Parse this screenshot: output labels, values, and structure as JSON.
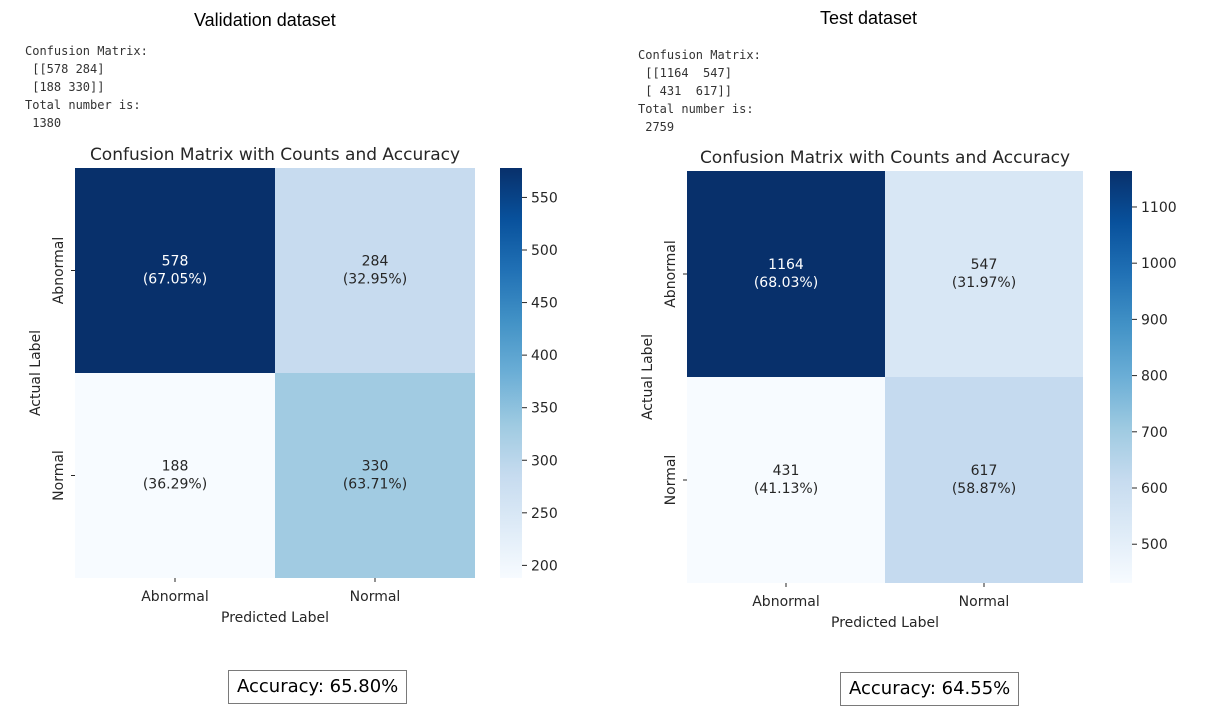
{
  "panels": [
    {
      "heading": "Validation dataset",
      "console": {
        "line1": "Confusion Matrix:",
        "line2": " [[578 284]",
        "line3": " [188 330]]",
        "line4": "Total number is:",
        "line5": " 1380"
      },
      "accuracy_text": "Accuracy: 65.80%"
    },
    {
      "heading": "Test dataset",
      "console": {
        "line1": "Confusion Matrix:",
        "line2": " [[1164  547]",
        "line3": " [ 431  617]]",
        "line4": "Total number is:",
        "line5": " 2759"
      },
      "accuracy_text": "Accuracy: 64.55%"
    }
  ],
  "chart_data": [
    {
      "type": "heatmap",
      "title": "Confusion Matrix with Counts and Accuracy",
      "xlabel": "Predicted Label",
      "ylabel": "Actual Label",
      "x_categories": [
        "Abnormal",
        "Normal"
      ],
      "y_categories": [
        "Abnormal",
        "Normal"
      ],
      "values": [
        [
          578,
          284
        ],
        [
          188,
          330
        ]
      ],
      "cell_labels": [
        [
          "(67.05%)",
          "(32.95%)"
        ],
        [
          "(36.29%)",
          "(63.71%)"
        ]
      ],
      "colormap": "Blues",
      "colorbar_range": [
        188,
        578
      ],
      "colorbar_ticks": [
        200,
        250,
        300,
        350,
        400,
        450,
        500,
        550
      ]
    },
    {
      "type": "heatmap",
      "title": "Confusion Matrix with Counts and Accuracy",
      "xlabel": "Predicted Label",
      "ylabel": "Actual Label",
      "x_categories": [
        "Abnormal",
        "Normal"
      ],
      "y_categories": [
        "Abnormal",
        "Normal"
      ],
      "values": [
        [
          1164,
          547
        ],
        [
          431,
          617
        ]
      ],
      "cell_labels": [
        [
          "(68.03%)",
          "(31.97%)"
        ],
        [
          "(41.13%)",
          "(58.87%)"
        ]
      ],
      "colormap": "Blues",
      "colorbar_range": [
        431,
        1164
      ],
      "colorbar_ticks": [
        500,
        600,
        700,
        800,
        900,
        1000,
        1100
      ]
    }
  ]
}
